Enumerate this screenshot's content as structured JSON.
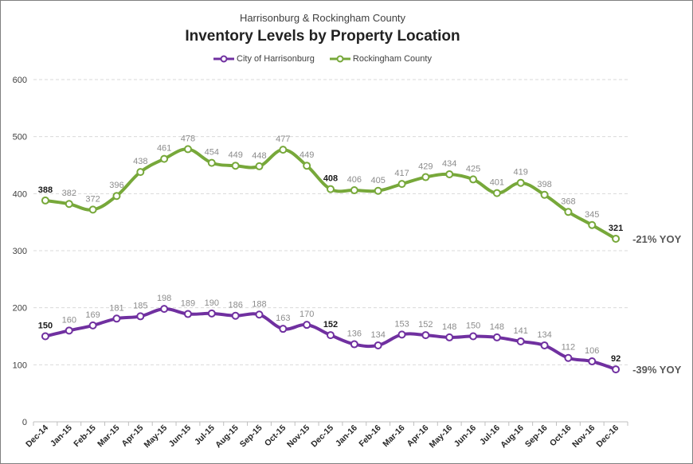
{
  "chart_data": {
    "type": "line",
    "subtitle": "Harrisonburg & Rockingham County",
    "title": "Inventory Levels by Property Location",
    "categories": [
      "Dec-14",
      "Jan-15",
      "Feb-15",
      "Mar-15",
      "Apr-15",
      "May-15",
      "Jun-15",
      "Jul-15",
      "Aug-15",
      "Sep-15",
      "Oct-15",
      "Nov-15",
      "Dec-15",
      "Jan-16",
      "Feb-16",
      "Mar-16",
      "Apr-16",
      "May-16",
      "Jun-16",
      "Jul-16",
      "Aug-16",
      "Sep-16",
      "Oct-16",
      "Nov-16",
      "Dec-16"
    ],
    "series": [
      {
        "name": "City of Harrisonburg",
        "color": "#7030a0",
        "values": [
          150,
          160,
          169,
          181,
          185,
          198,
          189,
          190,
          186,
          188,
          163,
          170,
          152,
          136,
          134,
          153,
          152,
          148,
          150,
          148,
          141,
          134,
          112,
          106,
          92
        ],
        "annotation": "-39% YOY"
      },
      {
        "name": "Rockingham County",
        "color": "#77a83a",
        "values": [
          388,
          382,
          372,
          396,
          438,
          461,
          478,
          454,
          449,
          448,
          477,
          449,
          408,
          406,
          405,
          417,
          429,
          434,
          425,
          401,
          419,
          398,
          368,
          345,
          321
        ],
        "annotation": "-21% YOY"
      }
    ],
    "bold_label_indices": [
      0,
      12,
      24
    ],
    "yticks": [
      0,
      100,
      200,
      300,
      400,
      500,
      600
    ],
    "ylim": [
      0,
      600
    ],
    "grid": "horizontal dashed",
    "legend": "top-center"
  }
}
